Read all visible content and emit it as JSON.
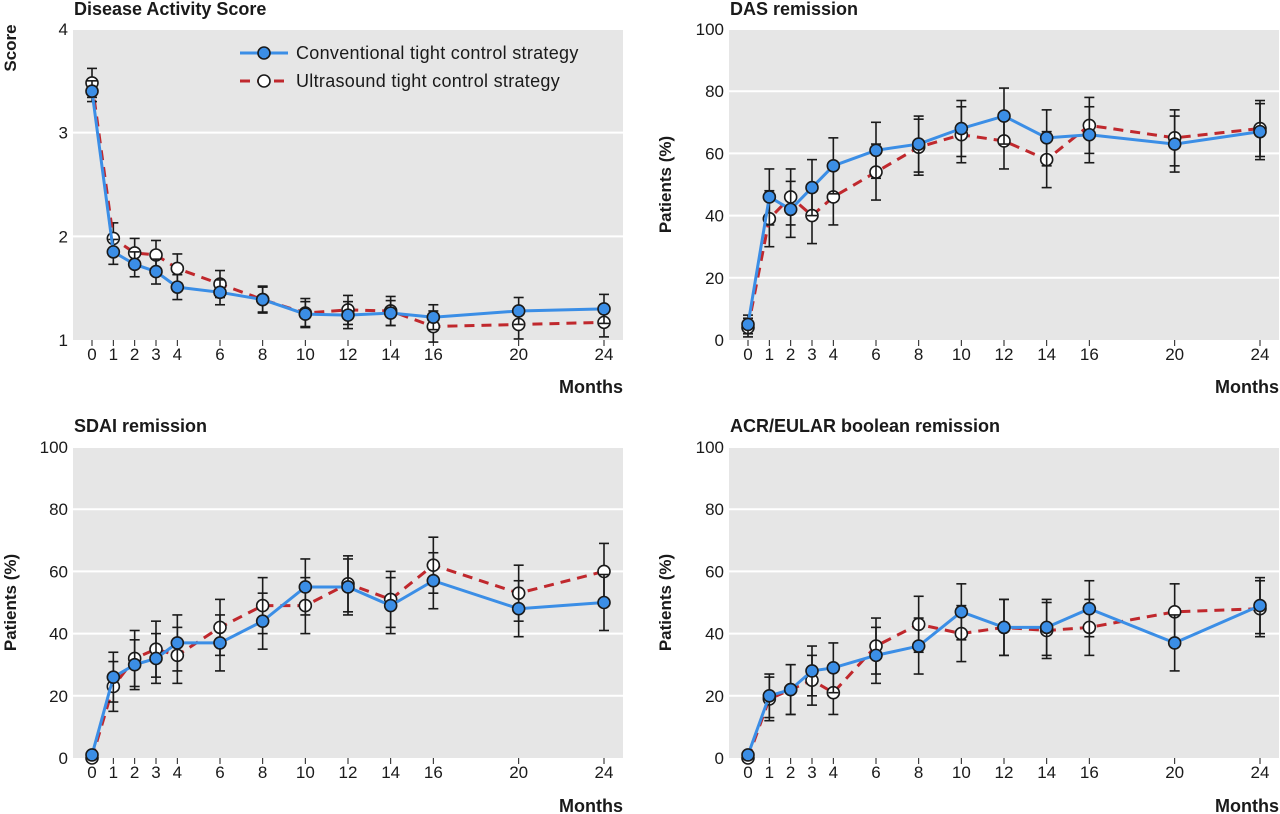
{
  "colors": {
    "panel_bg": "#e6e6e6",
    "grid": "#ffffff",
    "conventional_line": "#3b8ee6",
    "conventional_marker": "#3b8ee6",
    "ultrasound_line": "#c0282d",
    "ultrasound_marker": "#ffffff",
    "error_bar": "#1a1a1a"
  },
  "legend": {
    "conventional": "Conventional tight control strategy",
    "ultrasound": "Ultrasound tight control strategy"
  },
  "chart_data": [
    {
      "id": "das-score",
      "type": "line",
      "title": "Disease Activity Score",
      "xlabel": "Months",
      "ylabel": "Score",
      "x_ticks": [
        0,
        1,
        2,
        3,
        4,
        6,
        8,
        10,
        12,
        14,
        16,
        20,
        24
      ],
      "y_ticks": [
        1,
        2,
        3,
        4
      ],
      "xlim": [
        0,
        24
      ],
      "ylim": [
        1,
        4
      ],
      "grid": true,
      "legend_position": "top",
      "series": [
        {
          "name": "Conventional tight control strategy",
          "x": [
            0,
            1,
            2,
            3,
            4,
            6,
            8,
            10,
            12,
            14,
            16,
            20,
            24
          ],
          "y": [
            3.4,
            1.85,
            1.73,
            1.66,
            1.51,
            1.46,
            1.39,
            1.25,
            1.24,
            1.26,
            1.22,
            1.28,
            1.3
          ],
          "err": [
            0.1,
            0.12,
            0.12,
            0.12,
            0.12,
            0.12,
            0.12,
            0.12,
            0.13,
            0.12,
            0.12,
            0.13,
            0.14
          ]
        },
        {
          "name": "Ultrasound tight control strategy",
          "x": [
            0,
            1,
            2,
            3,
            4,
            6,
            8,
            10,
            12,
            14,
            16,
            20,
            24
          ],
          "y": [
            3.48,
            1.98,
            1.84,
            1.82,
            1.69,
            1.54,
            1.39,
            1.26,
            1.29,
            1.28,
            1.13,
            1.15,
            1.17
          ],
          "err": [
            0.14,
            0.15,
            0.14,
            0.14,
            0.14,
            0.13,
            0.13,
            0.14,
            0.14,
            0.14,
            0.15,
            0.14,
            0.14
          ]
        }
      ]
    },
    {
      "id": "das-remission",
      "type": "line",
      "title": "DAS remission",
      "xlabel": "Months",
      "ylabel": "Patients (%)",
      "x_ticks": [
        0,
        1,
        2,
        3,
        4,
        6,
        8,
        10,
        12,
        14,
        16,
        20,
        24
      ],
      "y_ticks": [
        0,
        20,
        40,
        60,
        80,
        100
      ],
      "xlim": [
        0,
        24
      ],
      "ylim": [
        0,
        100
      ],
      "grid": true,
      "series": [
        {
          "name": "Conventional tight control strategy",
          "x": [
            0,
            1,
            2,
            3,
            4,
            6,
            8,
            10,
            12,
            14,
            16,
            20,
            24
          ],
          "y": [
            5,
            46,
            42,
            49,
            56,
            61,
            63,
            68,
            72,
            65,
            66,
            63,
            67
          ],
          "err": [
            3,
            9,
            9,
            9,
            9,
            9,
            9,
            9,
            9,
            9,
            9,
            9,
            9
          ]
        },
        {
          "name": "Ultrasound tight control strategy",
          "x": [
            0,
            1,
            2,
            3,
            4,
            6,
            8,
            10,
            12,
            14,
            16,
            20,
            24
          ],
          "y": [
            4,
            39,
            46,
            40,
            46,
            54,
            62,
            66,
            64,
            58,
            69,
            65,
            68
          ],
          "err": [
            3,
            9,
            9,
            9,
            9,
            9,
            9,
            9,
            9,
            9,
            9,
            9,
            9
          ]
        }
      ]
    },
    {
      "id": "sdai-remission",
      "type": "line",
      "title": "SDAI remission",
      "xlabel": "Months",
      "ylabel": "Patients (%)",
      "x_ticks": [
        0,
        1,
        2,
        3,
        4,
        6,
        8,
        10,
        12,
        14,
        16,
        20,
        24
      ],
      "y_ticks": [
        0,
        20,
        40,
        60,
        80,
        100
      ],
      "xlim": [
        0,
        24
      ],
      "ylim": [
        0,
        100
      ],
      "grid": true,
      "series": [
        {
          "name": "Conventional tight control strategy",
          "x": [
            0,
            1,
            2,
            3,
            4,
            6,
            8,
            10,
            12,
            14,
            16,
            20,
            24
          ],
          "y": [
            1,
            26,
            30,
            32,
            37,
            37,
            44,
            55,
            55,
            49,
            57,
            48,
            50
          ],
          "err": [
            0,
            8,
            8,
            8,
            9,
            9,
            9,
            9,
            9,
            9,
            9,
            9,
            9
          ]
        },
        {
          "name": "Ultrasound tight control strategy",
          "x": [
            0,
            1,
            2,
            3,
            4,
            6,
            8,
            10,
            12,
            14,
            16,
            20,
            24
          ],
          "y": [
            0,
            23,
            32,
            35,
            33,
            42,
            49,
            49,
            56,
            51,
            62,
            53,
            60
          ],
          "err": [
            0,
            8,
            9,
            9,
            9,
            9,
            9,
            9,
            9,
            9,
            9,
            9,
            9
          ]
        }
      ]
    },
    {
      "id": "acr-eular-remission",
      "type": "line",
      "title": "ACR/EULAR boolean remission",
      "xlabel": "Months",
      "ylabel": "Patients (%)",
      "x_ticks": [
        0,
        1,
        2,
        3,
        4,
        6,
        8,
        10,
        12,
        14,
        16,
        20,
        24
      ],
      "y_ticks": [
        0,
        20,
        40,
        60,
        80,
        100
      ],
      "xlim": [
        0,
        24
      ],
      "ylim": [
        0,
        100
      ],
      "grid": true,
      "series": [
        {
          "name": "Conventional tight control strategy",
          "x": [
            0,
            1,
            2,
            3,
            4,
            6,
            8,
            10,
            12,
            14,
            16,
            20,
            24
          ],
          "y": [
            1,
            20,
            22,
            28,
            29,
            33,
            36,
            47,
            42,
            42,
            48,
            37,
            49
          ],
          "err": [
            0,
            7,
            8,
            8,
            8,
            9,
            9,
            9,
            9,
            9,
            9,
            9,
            9
          ]
        },
        {
          "name": "Ultrasound tight control strategy",
          "x": [
            0,
            1,
            2,
            3,
            4,
            6,
            8,
            10,
            12,
            14,
            16,
            20,
            24
          ],
          "y": [
            0,
            19,
            22,
            25,
            21,
            36,
            43,
            40,
            42,
            41,
            42,
            47,
            48
          ],
          "err": [
            0,
            7,
            8,
            8,
            7,
            9,
            9,
            9,
            9,
            9,
            9,
            9,
            9
          ]
        }
      ]
    }
  ]
}
